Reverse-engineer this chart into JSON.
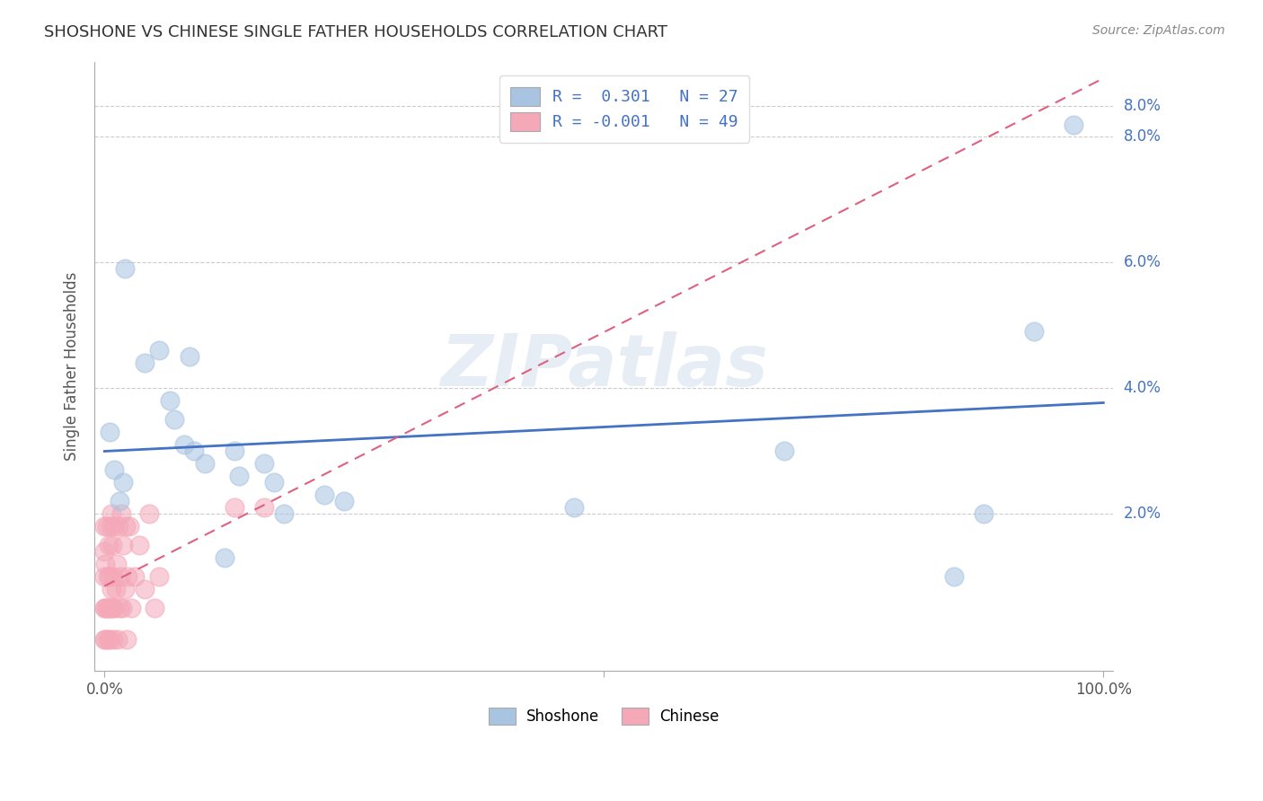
{
  "title": "SHOSHONE VS CHINESE SINGLE FATHER HOUSEHOLDS CORRELATION CHART",
  "source": "Source: ZipAtlas.com",
  "ylabel": "Single Father Households",
  "xlim": [
    -0.01,
    1.01
  ],
  "ylim": [
    -0.005,
    0.092
  ],
  "ytick_vals": [
    0.02,
    0.04,
    0.06,
    0.08
  ],
  "ytick_labels_right": [
    "2.0%",
    "4.0%",
    "6.0%",
    "8.0%"
  ],
  "xtick_vals": [
    0.0,
    0.5,
    1.0
  ],
  "xtick_labels": [
    "0.0%",
    "",
    "100.0%"
  ],
  "legend_r_shoshone": " 0.301",
  "legend_n_shoshone": "27",
  "legend_r_chinese": "-0.001",
  "legend_n_chinese": "49",
  "shoshone_color": "#a8c4e0",
  "chinese_color": "#f4a8b8",
  "regression_blue": "#4472c4",
  "regression_pink": "#e06080",
  "watermark": "ZIPatlas",
  "shoshone_x": [
    0.02,
    0.04,
    0.055,
    0.065,
    0.07,
    0.08,
    0.085,
    0.09,
    0.1,
    0.12,
    0.13,
    0.135,
    0.16,
    0.17,
    0.18,
    0.22,
    0.24,
    0.47,
    0.68,
    0.85,
    0.88,
    0.93,
    0.97,
    0.005,
    0.01,
    0.015,
    0.019
  ],
  "shoshone_y": [
    0.059,
    0.044,
    0.046,
    0.038,
    0.035,
    0.031,
    0.045,
    0.03,
    0.028,
    0.013,
    0.03,
    0.026,
    0.028,
    0.025,
    0.02,
    0.023,
    0.022,
    0.021,
    0.03,
    0.01,
    0.02,
    0.049,
    0.082,
    0.033,
    0.027,
    0.022,
    0.025
  ],
  "chinese_x": [
    0.0,
    0.0,
    0.0,
    0.0,
    0.0,
    0.001,
    0.001,
    0.001,
    0.002,
    0.002,
    0.003,
    0.003,
    0.004,
    0.004,
    0.005,
    0.005,
    0.006,
    0.006,
    0.007,
    0.007,
    0.008,
    0.008,
    0.009,
    0.009,
    0.01,
    0.01,
    0.011,
    0.012,
    0.013,
    0.014,
    0.015,
    0.016,
    0.017,
    0.018,
    0.019,
    0.02,
    0.021,
    0.022,
    0.023,
    0.025,
    0.027,
    0.03,
    0.035,
    0.04,
    0.045,
    0.05,
    0.055,
    0.13,
    0.16
  ],
  "chinese_y": [
    0.0,
    0.005,
    0.01,
    0.014,
    0.018,
    0.0,
    0.005,
    0.012,
    0.005,
    0.018,
    0.0,
    0.01,
    0.005,
    0.015,
    0.0,
    0.01,
    0.005,
    0.018,
    0.008,
    0.02,
    0.005,
    0.015,
    0.0,
    0.01,
    0.005,
    0.018,
    0.008,
    0.012,
    0.0,
    0.018,
    0.005,
    0.01,
    0.02,
    0.005,
    0.015,
    0.008,
    0.018,
    0.0,
    0.01,
    0.018,
    0.005,
    0.01,
    0.015,
    0.008,
    0.02,
    0.005,
    0.01,
    0.021,
    0.021
  ],
  "dot_size": 220,
  "dot_alpha": 0.55
}
